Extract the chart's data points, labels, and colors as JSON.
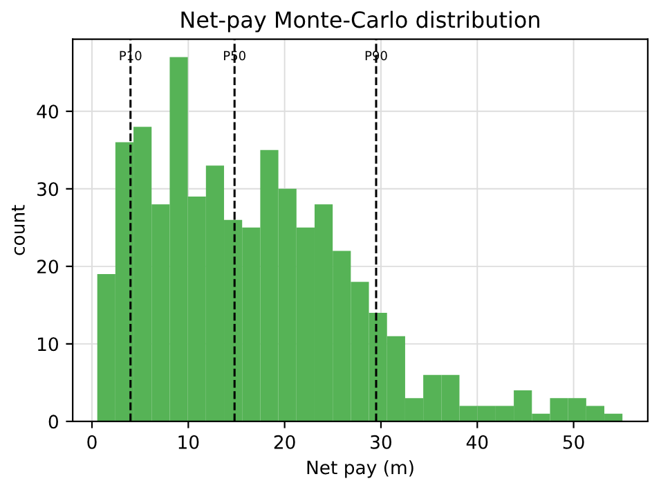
{
  "chart_data": {
    "type": "histogram",
    "title": "Net-pay Monte-Carlo distribution",
    "xlabel": "Net pay (m)",
    "ylabel": "count",
    "bins": [
      0.55,
      2.43,
      4.31,
      6.19,
      8.07,
      9.95,
      11.83,
      13.71,
      15.59,
      17.47,
      19.35,
      21.23,
      23.11,
      24.99,
      26.87,
      28.75,
      30.63,
      32.51,
      34.39,
      36.27,
      38.15,
      40.03,
      41.91,
      43.79,
      45.67,
      47.55,
      49.43,
      51.31,
      53.19,
      55.07
    ],
    "values": [
      19,
      36,
      38,
      28,
      47,
      29,
      33,
      26,
      25,
      35,
      30,
      25,
      28,
      22,
      18,
      14,
      11,
      3,
      6,
      6,
      2,
      2,
      2,
      4,
      1,
      3,
      3,
      2,
      1
    ],
    "color": "#56b356",
    "xlim": [
      -2,
      57.7
    ],
    "ylim": [
      0,
      49.3
    ],
    "xticks": [
      0,
      10,
      20,
      30,
      40,
      50
    ],
    "yticks": [
      0,
      10,
      20,
      30,
      40
    ],
    "ref_lines": [
      {
        "axis": "x",
        "value": 4.0,
        "label": "P10",
        "color": "#000000",
        "line_style": "dashed"
      },
      {
        "axis": "x",
        "value": 14.8,
        "label": "P50",
        "color": "#000000",
        "line_style": "dashed"
      },
      {
        "axis": "x",
        "value": 29.5,
        "label": "P90",
        "color": "#000000",
        "line_style": "dashed"
      }
    ],
    "grid": true
  }
}
